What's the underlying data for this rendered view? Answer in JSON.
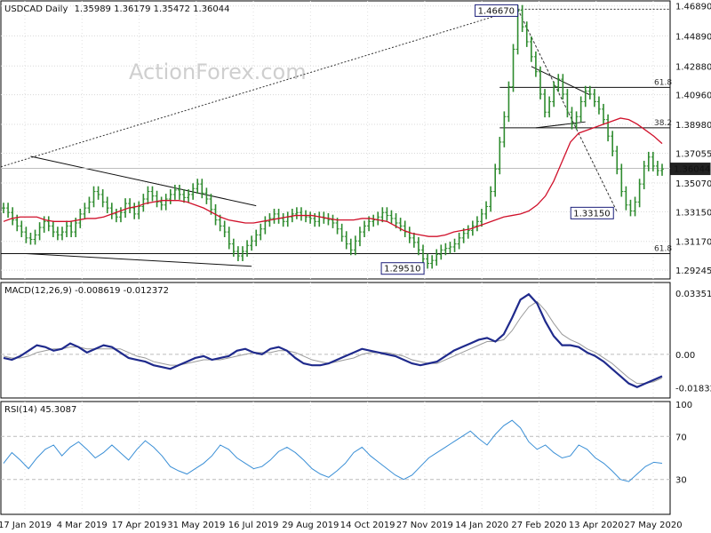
{
  "chart_data": [
    {
      "type": "line",
      "subtype": "ohlc",
      "title": "USDCAD Daily",
      "ohlc_label": "1.35989 1.36179 1.35472 1.36044",
      "watermark": "ActionForex.com",
      "ylim": [
        1.289,
        1.4705
      ],
      "y_ticks": [
        "1.46890",
        "1.44890",
        "1.42880",
        "1.40960",
        "1.38980",
        "1.37055",
        "1.35070",
        "1.33150",
        "1.31170",
        "1.29245"
      ],
      "last_price": "1.36044",
      "annotations": {
        "high": {
          "label": "1.46670",
          "value": 1.4667
        },
        "low": {
          "label": "1.29510",
          "value": 1.2951
        },
        "pullback_low": {
          "label": "1.33150",
          "value": 1.3315
        },
        "fib_618_upper": {
          "label": "61.8",
          "value": 1.4145
        },
        "fib_382": {
          "label": "38.2",
          "value": 1.3875
        },
        "fib_618_lower": {
          "label": "61.8",
          "value": 1.3035
        }
      },
      "series": [
        {
          "values": [
            1.334,
            1.331,
            1.326,
            1.322,
            1.318,
            1.314,
            1.313,
            1.316,
            1.321,
            1.325,
            1.322,
            1.318,
            1.316,
            1.318,
            1.322,
            1.318,
            1.324,
            1.33,
            1.334,
            1.338,
            1.345,
            1.343,
            1.338,
            1.334,
            1.33,
            1.328,
            1.331,
            1.337,
            1.334,
            1.33,
            1.335,
            1.34,
            1.345,
            1.342,
            1.338,
            1.336,
            1.34,
            1.343,
            1.346,
            1.343,
            1.341,
            1.343,
            1.347,
            1.35,
            1.344,
            1.34,
            1.333,
            1.326,
            1.322,
            1.318,
            1.31,
            1.305,
            1.302,
            1.305,
            1.309,
            1.312,
            1.316,
            1.32,
            1.325,
            1.327,
            1.33,
            1.327,
            1.325,
            1.328,
            1.33,
            1.331,
            1.329,
            1.328,
            1.327,
            1.325,
            1.328,
            1.327,
            1.326,
            1.324,
            1.32,
            1.315,
            1.31,
            1.306,
            1.312,
            1.318,
            1.322,
            1.325,
            1.326,
            1.328,
            1.331,
            1.329,
            1.327,
            1.324,
            1.322,
            1.318,
            1.314,
            1.311,
            1.306,
            1.3,
            1.297,
            1.299,
            1.303,
            1.306,
            1.307,
            1.308,
            1.31,
            1.314,
            1.317,
            1.319,
            1.322,
            1.325,
            1.33,
            1.335,
            1.345,
            1.36,
            1.378,
            1.395,
            1.415,
            1.44,
            1.466,
            1.455,
            1.445,
            1.435,
            1.425,
            1.41,
            1.398,
            1.405,
            1.415,
            1.42,
            1.41,
            1.398,
            1.39,
            1.395,
            1.405,
            1.412,
            1.41,
            1.405,
            1.4,
            1.393,
            1.382,
            1.372,
            1.36,
            1.345,
            1.336,
            1.332,
            1.338,
            1.35,
            1.362,
            1.368,
            1.362,
            1.359,
            1.36
          ]
        },
        {
          "name": "MA",
          "values": [
            1.325,
            1.327,
            1.328,
            1.328,
            1.328,
            1.326,
            1.325,
            1.325,
            1.325,
            1.326,
            1.327,
            1.327,
            1.328,
            1.33,
            1.332,
            1.334,
            1.335,
            1.337,
            1.338,
            1.339,
            1.339,
            1.339,
            1.338,
            1.336,
            1.334,
            1.331,
            1.328,
            1.326,
            1.325,
            1.324,
            1.324,
            1.325,
            1.326,
            1.327,
            1.328,
            1.329,
            1.329,
            1.329,
            1.328,
            1.327,
            1.326,
            1.326,
            1.326,
            1.327,
            1.327,
            1.326,
            1.325,
            1.322,
            1.319,
            1.317,
            1.316,
            1.315,
            1.315,
            1.316,
            1.318,
            1.319,
            1.32,
            1.322,
            1.324,
            1.326,
            1.328,
            1.329,
            1.33,
            1.332,
            1.336,
            1.342,
            1.352,
            1.365,
            1.378,
            1.384,
            1.386,
            1.388,
            1.39,
            1.392,
            1.394,
            1.393,
            1.39,
            1.386,
            1.382,
            1.377
          ]
        }
      ]
    },
    {
      "type": "line",
      "title": "MACD(12,26,9) -0.008619 -0.012372",
      "y_ticks": [
        "0.033515",
        "0.00",
        "-0.018324"
      ],
      "series": [
        {
          "values": [
            -0.002,
            -0.003,
            -0.001,
            0.002,
            0.005,
            0.004,
            0.002,
            0.003,
            0.006,
            0.004,
            0.001,
            0.003,
            0.005,
            0.004,
            0.001,
            -0.002,
            -0.003,
            -0.004,
            -0.006,
            -0.007,
            -0.008,
            -0.006,
            -0.004,
            -0.002,
            -0.001,
            -0.003,
            -0.002,
            -0.001,
            0.002,
            0.003,
            0.001,
            0.0,
            0.003,
            0.004,
            0.002,
            -0.002,
            -0.005,
            -0.006,
            -0.006,
            -0.005,
            -0.003,
            -0.001,
            0.001,
            0.003,
            0.002,
            0.001,
            0.0,
            -0.001,
            -0.003,
            -0.005,
            -0.006,
            -0.005,
            -0.004,
            -0.001,
            0.002,
            0.004,
            0.006,
            0.008,
            0.009,
            0.007,
            0.011,
            0.02,
            0.03,
            0.033,
            0.028,
            0.018,
            0.01,
            0.005,
            0.005,
            0.004,
            0.001,
            -0.001,
            -0.004,
            -0.008,
            -0.012,
            -0.016,
            -0.018,
            -0.016,
            -0.014,
            -0.012
          ]
        },
        {
          "values": [
            -0.001,
            -0.002,
            -0.002,
            -0.001,
            0.001,
            0.002,
            0.003,
            0.003,
            0.004,
            0.004,
            0.003,
            0.003,
            0.003,
            0.003,
            0.003,
            0.001,
            -0.001,
            -0.002,
            -0.004,
            -0.005,
            -0.006,
            -0.006,
            -0.005,
            -0.004,
            -0.003,
            -0.003,
            -0.003,
            -0.002,
            -0.001,
            0.0,
            0.001,
            0.001,
            0.001,
            0.002,
            0.002,
            0.001,
            -0.001,
            -0.003,
            -0.004,
            -0.005,
            -0.004,
            -0.003,
            -0.002,
            0.0,
            0.001,
            0.001,
            0.001,
            0.0,
            -0.001,
            -0.003,
            -0.004,
            -0.005,
            -0.005,
            -0.003,
            -0.001,
            0.001,
            0.003,
            0.005,
            0.007,
            0.007,
            0.008,
            0.013,
            0.02,
            0.026,
            0.029,
            0.024,
            0.017,
            0.011,
            0.008,
            0.006,
            0.003,
            0.001,
            -0.002,
            -0.005,
            -0.009,
            -0.013,
            -0.016,
            -0.016,
            -0.015,
            -0.013
          ]
        }
      ]
    },
    {
      "type": "line",
      "title": "RSI(14) 45.3087",
      "ylim": [
        0,
        100
      ],
      "y_ticks": [
        "100",
        "70",
        "30"
      ],
      "x_ticks": [
        "17 Jan 2019",
        "4 Mar 2019",
        "17 Apr 2019",
        "31 May 2019",
        "16 Jul 2019",
        "29 Aug 2019",
        "14 Oct 2019",
        "27 Nov 2019",
        "14 Jan 2020",
        "27 Feb 2020",
        "13 Apr 2020",
        "27 May 2020"
      ],
      "series": [
        {
          "values": [
            45,
            55,
            48,
            40,
            50,
            58,
            62,
            52,
            60,
            65,
            58,
            50,
            55,
            62,
            55,
            48,
            58,
            66,
            60,
            52,
            42,
            38,
            35,
            40,
            45,
            52,
            62,
            58,
            50,
            45,
            40,
            42,
            48,
            56,
            60,
            55,
            48,
            40,
            35,
            32,
            38,
            45,
            55,
            60,
            52,
            46,
            40,
            34,
            30,
            34,
            42,
            50,
            55,
            60,
            65,
            70,
            75,
            68,
            62,
            72,
            80,
            85,
            78,
            65,
            58,
            62,
            55,
            50,
            52,
            62,
            58,
            50,
            45,
            38,
            30,
            28,
            35,
            42,
            46,
            45
          ]
        }
      ]
    }
  ]
}
